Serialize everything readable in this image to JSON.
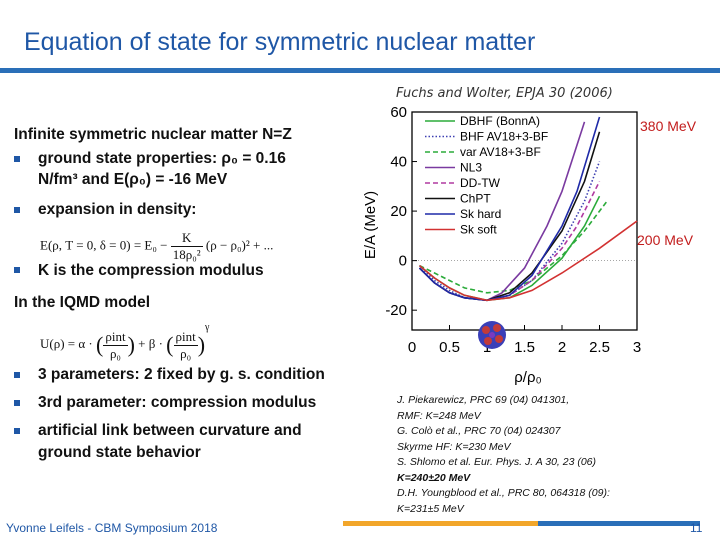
{
  "slide": {
    "title": "Equation of state for symmetric nuclear matter",
    "citation": "Fuchs and Wolter, EPJA 30 (2006)",
    "footer": "Yvonne Leifels - CBM Symposium 2018",
    "page_number": "11"
  },
  "bullets": {
    "head1": "Infinite symmetric nuclear matter N=Z",
    "b1_line1": "ground state properties: ρ₀ = 0.16",
    "b1_line2": "N/fm³ and E(ρ₀) = -16 MeV",
    "b2": "expansion in density:",
    "eq1_lhs": "E(ρ, T = 0, δ = 0) = E₀ −",
    "eq1_num": "K",
    "eq1_den": "18ρ₀²",
    "eq1_rhs": "(ρ − ρ₀)² + ...",
    "b3": "K is the compression modulus",
    "head2": "In the IQMD model",
    "eq2_lhs": "U(ρ) = α ·",
    "eq2_num1": "ρint",
    "eq2_den1": "ρ₀",
    "eq2_mid": "+ β ·",
    "eq2_num2": "ρint",
    "eq2_den2": "ρ₀",
    "eq2_exp": "γ",
    "b4": "3 parameters: 2 fixed by g. s. condition",
    "b5": "3rd parameter: compression modulus",
    "b6_line1": "artificial link between curvature and",
    "b6_line2": "ground state behavior"
  },
  "annotations": {
    "high": "380 MeV",
    "low": "200 MeV"
  },
  "references": [
    {
      "text": "J. Piekarewicz, PRC 69 (04) 041301,",
      "bold": false
    },
    {
      "text": "RMF: K=248 MeV",
      "bold": false
    },
    {
      "text": "G. Colò et al., PRC 70 (04) 024307",
      "bold": false
    },
    {
      "text": "Skyrme HF: K=230 MeV",
      "bold": false
    },
    {
      "text": "S. Shlomo et al. Eur. Phys. J. A 30, 23 (06)",
      "bold": false
    },
    {
      "text": "K=240±20 MeV",
      "bold": true
    },
    {
      "text": "D.H. Youngblood et al., PRC 80, 064318 (09):",
      "bold": false
    },
    {
      "text": "K=231±5 MeV",
      "bold": false
    }
  ],
  "chart_data": {
    "type": "line",
    "xlabel": "ρ/ρ₀",
    "ylabel": "E/A  (MeV)",
    "xlim": [
      0,
      3
    ],
    "ylim": [
      -28,
      60
    ],
    "xticks": [
      "0",
      "0.5",
      "1",
      "1.5",
      "2",
      "2.5",
      "3"
    ],
    "yticks": [
      "60",
      "40",
      "20",
      "0",
      "-20"
    ],
    "series": [
      {
        "name": "DBHF (BonnA)",
        "color": "#2bab3a",
        "dash": "solid",
        "x": [
          0.1,
          0.3,
          0.5,
          0.7,
          1,
          1.3,
          1.6,
          2,
          2.3,
          2.5
        ],
        "y": [
          -2,
          -7,
          -11,
          -14,
          -16,
          -15,
          -10,
          1,
          14,
          26
        ]
      },
      {
        "name": "BHF AV18+3-BF",
        "color": "#3d3fb2",
        "dash": "dotted",
        "x": [
          0.1,
          0.3,
          0.5,
          0.7,
          1,
          1.3,
          1.6,
          2,
          2.3,
          2.5
        ],
        "y": [
          -2,
          -8,
          -12,
          -15,
          -16,
          -14,
          -8,
          7,
          24,
          40
        ]
      },
      {
        "name": "var AV18+3-BF",
        "color": "#2bab3a",
        "dash": "dashed",
        "x": [
          0.1,
          0.3,
          0.5,
          0.7,
          1,
          1.3,
          1.6,
          2,
          2.3,
          2.6
        ],
        "y": [
          -2,
          -5,
          -8,
          -11,
          -13,
          -12,
          -8,
          2,
          12,
          24
        ]
      },
      {
        "name": "NL3",
        "color": "#7a3aa0",
        "dash": "solid",
        "x": [
          0.1,
          0.3,
          0.5,
          0.7,
          1,
          1.2,
          1.5,
          1.8,
          2,
          2.3
        ],
        "y": [
          -3,
          -9,
          -13,
          -15,
          -16,
          -13,
          -3,
          14,
          28,
          56
        ]
      },
      {
        "name": "DD-TW",
        "color": "#b03aa0",
        "dash": "dashed",
        "x": [
          0.1,
          0.3,
          0.5,
          0.7,
          1,
          1.3,
          1.6,
          2,
          2.2,
          2.5
        ],
        "y": [
          -3,
          -9,
          -13,
          -15,
          -16,
          -14,
          -8,
          5,
          14,
          32
        ]
      },
      {
        "name": "ChPT",
        "color": "#111111",
        "dash": "solid",
        "x": [
          0.1,
          0.3,
          0.5,
          0.7,
          1,
          1.3,
          1.6,
          2,
          2.3,
          2.5
        ],
        "y": [
          -3,
          -9,
          -13,
          -15,
          -16,
          -13,
          -5,
          12,
          32,
          52
        ]
      },
      {
        "name": "Sk hard",
        "color": "#1f2aa8",
        "dash": "solid",
        "x": [
          0.1,
          0.3,
          0.5,
          0.7,
          1,
          1.3,
          1.6,
          2,
          2.2,
          2.5
        ],
        "y": [
          -3,
          -9,
          -13,
          -15,
          -16,
          -14,
          -6,
          14,
          28,
          58
        ]
      },
      {
        "name": "Sk soft",
        "color": "#d23232",
        "dash": "solid",
        "x": [
          0.1,
          0.3,
          0.5,
          0.7,
          1,
          1.3,
          1.6,
          2,
          2.5,
          3
        ],
        "y": [
          -2,
          -7,
          -11,
          -14,
          -16,
          -15,
          -12,
          -5,
          5,
          16
        ]
      }
    ]
  },
  "colors": {
    "title": "#1f57a6",
    "rule": "#2a6fb8",
    "footer_bar_orange": "#f2a62a",
    "footer_bar_blue": "#2a6fb8",
    "annotation": "#c21c1c"
  }
}
